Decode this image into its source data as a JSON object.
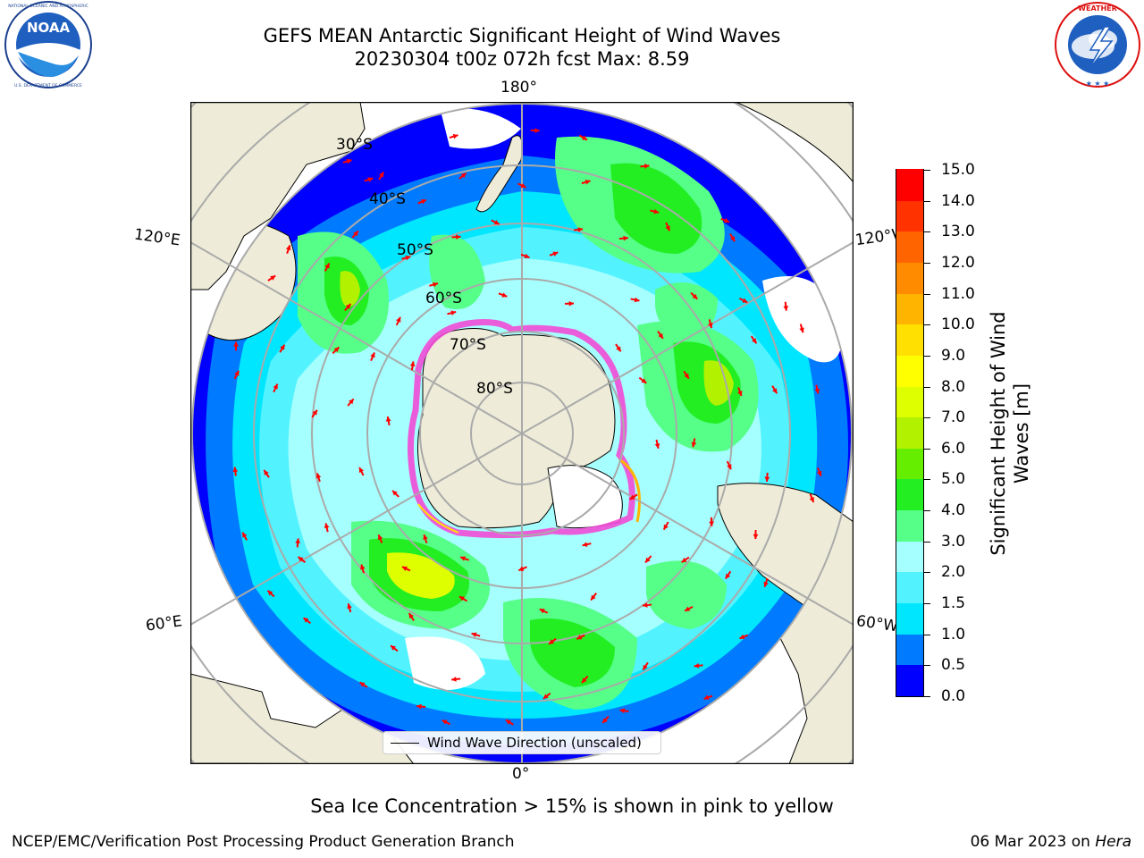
{
  "title": {
    "line1": "GEFS MEAN Antarctic Significant Height of Wind Waves",
    "line2": "20230304 t00z 072h fcst   Max: 8.59"
  },
  "logos": {
    "left": "NOAA",
    "left_ring_text": "NATIONAL OCEANIC AND ATMOSPHERIC ADMINISTRATION · U.S. DEPARTMENT OF COMMERCE",
    "right": "NATIONAL WEATHER SERVICE"
  },
  "map": {
    "projection": "south-polar-stereographic",
    "lon_labels": {
      "top": "180°",
      "bottom": "0°",
      "upper_left": "120°E",
      "upper_right": "120°W",
      "lower_left": "60°E",
      "lower_right": "60°W"
    },
    "lat_labels": [
      "30°S",
      "40°S",
      "50°S",
      "60°S",
      "70°S",
      "80°S"
    ],
    "legend": "Wind Wave Direction (unscaled)",
    "colors": {
      "land": "#eeecd8",
      "ice": "#f24bd6",
      "arrow": "#ff0000"
    }
  },
  "colorbar": {
    "label": "Significant Height of Wind Waves [m]",
    "label_line1": "Significant Height of Wind",
    "label_line2": "Waves [m]",
    "ticks": [
      "15.0",
      "14.0",
      "13.0",
      "12.0",
      "11.0",
      "10.0",
      "9.0",
      "8.0",
      "7.0",
      "6.0",
      "5.0",
      "4.0",
      "3.0",
      "2.0",
      "1.5",
      "1.0",
      "0.5",
      "0.0"
    ],
    "bins": [
      {
        "range": "0.0-0.5",
        "color": "#0000ff"
      },
      {
        "range": "0.5-1.0",
        "color": "#007bff"
      },
      {
        "range": "1.0-1.5",
        "color": "#00e6ff"
      },
      {
        "range": "1.5-2.0",
        "color": "#52f3ff"
      },
      {
        "range": "2.0-3.0",
        "color": "#a6ffff"
      },
      {
        "range": "3.0-4.0",
        "color": "#55ff88"
      },
      {
        "range": "4.0-5.0",
        "color": "#22ee22"
      },
      {
        "range": "5.0-6.0",
        "color": "#66ee00"
      },
      {
        "range": "6.0-7.0",
        "color": "#b2f200"
      },
      {
        "range": "7.0-8.0",
        "color": "#ddff00"
      },
      {
        "range": "8.0-9.0",
        "color": "#ffff00"
      },
      {
        "range": "9.0-10.0",
        "color": "#ffe000"
      },
      {
        "range": "10.0-11.0",
        "color": "#ffb400"
      },
      {
        "range": "11.0-12.0",
        "color": "#ff8c00"
      },
      {
        "range": "12.0-13.0",
        "color": "#ff6400"
      },
      {
        "range": "13.0-14.0",
        "color": "#ff3200"
      },
      {
        "range": "14.0-15.0",
        "color": "#ff0000"
      }
    ]
  },
  "note": "Sea Ice Concentration > 15% is shown in pink to yellow",
  "footer": {
    "left": "NCEP/EMC/Verification Post Processing Product Generation Branch",
    "date": "06 Mar 2023 on",
    "machine": "Hera"
  }
}
